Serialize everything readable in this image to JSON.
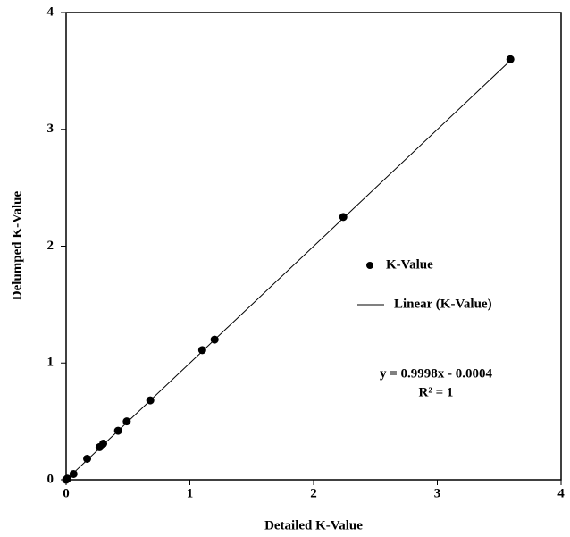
{
  "chart_data": {
    "type": "scatter",
    "x_label": "Detailed K-Value",
    "y_label": "Delumped K-Value",
    "series": [
      {
        "name": "K-Value",
        "color": "#000000",
        "x": [
          0.0,
          0.01,
          0.06,
          0.17,
          0.27,
          0.3,
          0.42,
          0.49,
          0.68,
          1.1,
          1.2,
          2.24,
          3.59
        ],
        "values": [
          0.0,
          0.01,
          0.05,
          0.18,
          0.28,
          0.31,
          0.42,
          0.5,
          0.68,
          1.11,
          1.2,
          2.25,
          3.6
        ]
      }
    ],
    "trendline": {
      "name": "Linear (K-Value)",
      "slope": 0.9998,
      "intercept": -0.0004,
      "equation": "y = 0.9998x - 0.0004",
      "r2": "R² = 1"
    },
    "xlim": [
      0,
      4
    ],
    "ylim": [
      0,
      4
    ],
    "xticks": [
      0,
      1,
      2,
      3,
      4
    ],
    "yticks": [
      0,
      1,
      2,
      3,
      4
    ]
  }
}
